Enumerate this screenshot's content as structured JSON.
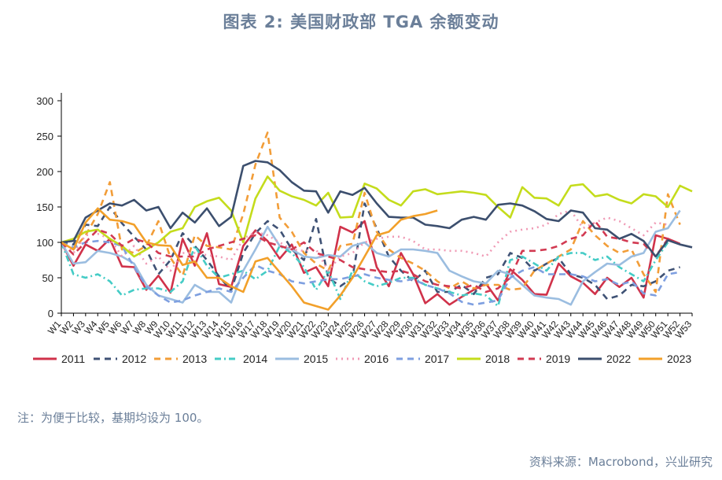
{
  "title": "图表 2:  美国财政部 TGA 余额变动",
  "note": "注：为便于比较，基期均设为 100。",
  "source": "资料来源：Macrobond，兴业研究",
  "chart_data": {
    "type": "line",
    "title": "图表 2:  美国财政部 TGA 余额变动",
    "xlabel": "",
    "ylabel": "",
    "ylim": [
      0,
      300
    ],
    "yticks": [
      0,
      50,
      100,
      150,
      200,
      250,
      300
    ],
    "x": [
      "1",
      "2",
      "3",
      "4",
      "5",
      "6",
      "7",
      "8",
      "9",
      "10",
      "11",
      "12",
      "13",
      "14",
      "15",
      "16",
      "17",
      "18",
      "19",
      "20",
      "21",
      "22",
      "23",
      "24",
      "25",
      "26",
      "27",
      "28",
      "29",
      "30",
      "31",
      "32",
      "33",
      "34",
      "35",
      "36",
      "37",
      "38",
      "39",
      "40",
      "41",
      "42",
      "43",
      "44",
      "45",
      "46",
      "47",
      "48",
      "49",
      "50",
      "51",
      "52",
      "53"
    ],
    "x_tick_prefix": "W",
    "grid": false,
    "legend_position": "bottom",
    "series": [
      {
        "name": "2011",
        "color": "#d0324a",
        "dash": "solid",
        "values": [
          100,
          67,
          97,
          88,
          105,
          66,
          65,
          33,
          53,
          29,
          105,
          67,
          113,
          41,
          37,
          95,
          117,
          102,
          77,
          97,
          57,
          65,
          38,
          122,
          114,
          130,
          65,
          38,
          85,
          55,
          14,
          27,
          12,
          23,
          33,
          42,
          18,
          62,
          47,
          27,
          26,
          70,
          52,
          43,
          27,
          50,
          37,
          50,
          22,
          110,
          105,
          98,
          null
        ]
      },
      {
        "name": "2012",
        "color": "#3f5275",
        "dash": "8,6",
        "values": [
          100,
          97,
          125,
          123,
          150,
          127,
          108,
          90,
          55,
          75,
          113,
          95,
          75,
          52,
          32,
          85,
          113,
          130,
          118,
          90,
          75,
          133,
          50,
          38,
          50,
          155,
          120,
          80,
          60,
          45,
          60,
          30,
          30,
          40,
          27,
          50,
          55,
          85,
          78,
          60,
          70,
          78,
          55,
          50,
          40,
          20,
          25,
          40,
          38,
          45,
          60,
          65,
          null
        ]
      },
      {
        "name": "2013",
        "color": "#f29d38",
        "dash": "8,6",
        "values": [
          100,
          90,
          110,
          140,
          185,
          90,
          85,
          95,
          130,
          78,
          53,
          110,
          95,
          93,
          90,
          140,
          210,
          255,
          135,
          115,
          85,
          70,
          60,
          95,
          98,
          170,
          115,
          90,
          78,
          70,
          60,
          45,
          35,
          45,
          35,
          40,
          40,
          33,
          35,
          60,
          70,
          80,
          90,
          130,
          110,
          95,
          85,
          90,
          55,
          30,
          168,
          125,
          null
        ]
      },
      {
        "name": "2014",
        "color": "#45ccc6",
        "dash": "8,4,2,4",
        "values": [
          100,
          55,
          50,
          55,
          45,
          25,
          33,
          35,
          35,
          30,
          45,
          95,
          67,
          50,
          55,
          60,
          48,
          60,
          95,
          85,
          65,
          33,
          60,
          20,
          60,
          45,
          38,
          43,
          50,
          50,
          40,
          35,
          30,
          25,
          28,
          25,
          10,
          75,
          80,
          70,
          60,
          80,
          85,
          85,
          75,
          80,
          65,
          55,
          45,
          75,
          100,
          null,
          null
        ]
      },
      {
        "name": "2015",
        "color": "#9bbde0",
        "dash": "solid",
        "values": [
          100,
          70,
          72,
          88,
          85,
          80,
          70,
          40,
          25,
          20,
          15,
          40,
          30,
          30,
          15,
          60,
          90,
          122,
          95,
          90,
          80,
          78,
          82,
          80,
          95,
          100,
          85,
          80,
          90,
          90,
          88,
          85,
          60,
          52,
          45,
          42,
          60,
          55,
          40,
          25,
          22,
          20,
          12,
          45,
          58,
          70,
          68,
          80,
          85,
          115,
          120,
          145,
          null
        ]
      },
      {
        "name": "2016",
        "color": "#f09ab5",
        "dash": "2,5",
        "values": [
          100,
          85,
          110,
          112,
          105,
          80,
          95,
          70,
          80,
          60,
          85,
          85,
          82,
          80,
          75,
          105,
          115,
          110,
          100,
          90,
          88,
          90,
          60,
          80,
          85,
          100,
          105,
          108,
          108,
          102,
          90,
          90,
          88,
          88,
          85,
          80,
          100,
          115,
          118,
          120,
          125,
          140,
          145,
          120,
          128,
          135,
          130,
          120,
          110,
          128,
          125,
          null,
          null
        ]
      },
      {
        "name": "2017",
        "color": "#7e9fe0",
        "dash": "8,6",
        "values": [
          100,
          93,
          100,
          102,
          100,
          95,
          65,
          38,
          25,
          15,
          18,
          25,
          30,
          35,
          30,
          50,
          68,
          60,
          55,
          45,
          42,
          45,
          48,
          48,
          52,
          55,
          50,
          47,
          45,
          48,
          40,
          35,
          28,
          16,
          12,
          15,
          18,
          50,
          60,
          65,
          55,
          55,
          55,
          52,
          45,
          48,
          40,
          45,
          28,
          25,
          55,
          58,
          null
        ]
      },
      {
        "name": "2018",
        "color": "#c4dc1c",
        "dash": "solid",
        "values": [
          100,
          105,
          115,
          118,
          105,
          95,
          80,
          90,
          100,
          115,
          120,
          150,
          158,
          163,
          145,
          100,
          162,
          193,
          173,
          165,
          160,
          152,
          170,
          135,
          136,
          183,
          176,
          160,
          152,
          172,
          175,
          168,
          170,
          172,
          170,
          167,
          150,
          135,
          178,
          163,
          162,
          152,
          180,
          182,
          165,
          168,
          160,
          155,
          168,
          165,
          150,
          180,
          172
        ]
      },
      {
        "name": "2019",
        "color": "#d23a52",
        "dash": "8,6",
        "values": [
          100,
          83,
          100,
          118,
          112,
          95,
          105,
          100,
          85,
          80,
          80,
          80,
          90,
          95,
          100,
          105,
          110,
          100,
          95,
          90,
          100,
          85,
          80,
          75,
          65,
          62,
          60,
          58,
          60,
          55,
          45,
          40,
          38,
          35,
          40,
          30,
          35,
          50,
          88,
          88,
          90,
          95,
          105,
          110,
          130,
          108,
          105,
          100,
          98,
          80,
          105,
          98,
          null
        ]
      },
      {
        "name": "2022",
        "color": "#3c4f6e",
        "dash": "solid",
        "values": [
          100,
          102,
          135,
          145,
          155,
          152,
          160,
          145,
          150,
          120,
          142,
          128,
          148,
          123,
          136,
          208,
          215,
          213,
          202,
          185,
          173,
          172,
          142,
          172,
          167,
          177,
          155,
          136,
          135,
          135,
          125,
          123,
          120,
          132,
          136,
          132,
          153,
          155,
          152,
          144,
          133,
          130,
          145,
          142,
          120,
          118,
          105,
          112,
          102,
          80,
          103,
          97,
          93
        ]
      },
      {
        "name": "2023",
        "color": "#f2a02a",
        "dash": "solid",
        "values": [
          100,
          90,
          128,
          148,
          132,
          130,
          125,
          100,
          96,
          95,
          68,
          73,
          50,
          50,
          38,
          30,
          73,
          78,
          58,
          38,
          15,
          10,
          5,
          25,
          50,
          80,
          110,
          115,
          132,
          137,
          140,
          145,
          null,
          null,
          null,
          null,
          null,
          null,
          null,
          null,
          null,
          null,
          null,
          null,
          null,
          null,
          null,
          null,
          null,
          null,
          null,
          null,
          null
        ]
      }
    ]
  }
}
